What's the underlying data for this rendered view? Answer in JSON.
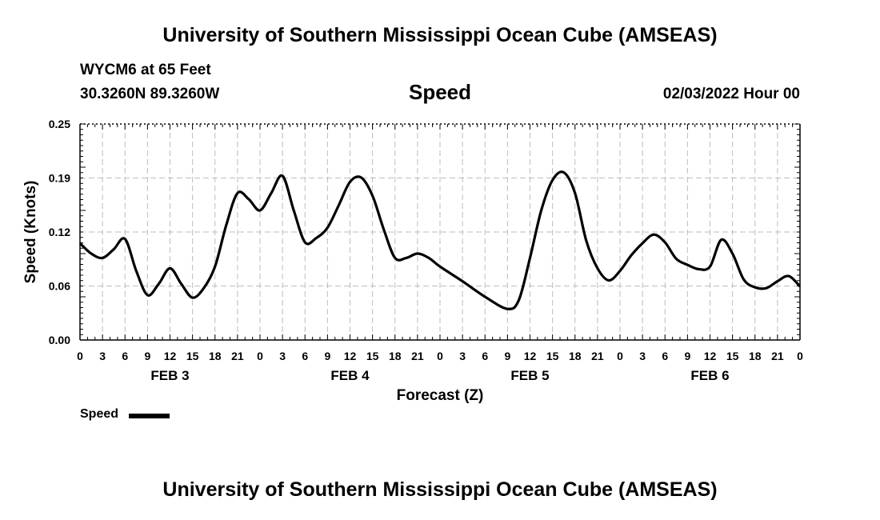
{
  "header": {
    "title": "University of Southern Mississippi Ocean Cube (AMSEAS)",
    "station": "WYCM6 at 65 Feet",
    "coords": "30.3260N  89.3260W",
    "variable": "Speed",
    "datetime": "02/03/2022 Hour 00"
  },
  "footer": {
    "title": "University of Southern Mississippi Ocean Cube (AMSEAS)"
  },
  "legend": {
    "label": "Speed"
  },
  "chart_data": {
    "type": "line",
    "title": "Speed",
    "xlabel": "Forecast (Z)",
    "ylabel": "Speed (Knots)",
    "ylim": [
      0,
      0.25
    ],
    "xlim": [
      0,
      96
    ],
    "grid": true,
    "legend_position": "bottom-left",
    "y_ticks": [
      "0.00",
      "0.06",
      "0.12",
      "0.19",
      "0.25"
    ],
    "y_tick_values": [
      0,
      0.0625,
      0.125,
      0.1875,
      0.25
    ],
    "x_tick_labels": [
      "0",
      "3",
      "6",
      "9",
      "12",
      "15",
      "18",
      "21",
      "0",
      "3",
      "6",
      "9",
      "12",
      "15",
      "18",
      "21",
      "0",
      "3",
      "6",
      "9",
      "12",
      "15",
      "18",
      "21",
      "0",
      "3",
      "6",
      "9",
      "12",
      "15",
      "18",
      "21",
      "0"
    ],
    "day_labels": [
      {
        "label": "FEB 3",
        "hour": 12
      },
      {
        "label": "FEB 4",
        "hour": 36
      },
      {
        "label": "FEB 5",
        "hour": 60
      },
      {
        "label": "FEB 6",
        "hour": 84
      }
    ],
    "series": [
      {
        "name": "Speed",
        "x": [
          0,
          1.5,
          3,
          4.5,
          6,
          7.5,
          9,
          10.5,
          12,
          13.5,
          15,
          16.5,
          18,
          19.5,
          21,
          22.5,
          24,
          25.5,
          27,
          28.5,
          30,
          31.5,
          33,
          34.5,
          36,
          37.5,
          39,
          40.5,
          42,
          43.5,
          45,
          46.5,
          48,
          51,
          54,
          57,
          58.5,
          60,
          61.5,
          63,
          64.5,
          66,
          67.5,
          69,
          70.5,
          72,
          73.5,
          75,
          76.5,
          78,
          79.5,
          81,
          82.5,
          84,
          85.5,
          87,
          88.5,
          90,
          91.5,
          93,
          94.5,
          96
        ],
        "values": [
          0.112,
          0.1,
          0.095,
          0.105,
          0.117,
          0.08,
          0.052,
          0.065,
          0.083,
          0.065,
          0.049,
          0.06,
          0.085,
          0.133,
          0.17,
          0.163,
          0.15,
          0.17,
          0.19,
          0.15,
          0.113,
          0.118,
          0.13,
          0.156,
          0.183,
          0.188,
          0.167,
          0.128,
          0.095,
          0.095,
          0.1,
          0.095,
          0.085,
          0.068,
          0.05,
          0.036,
          0.046,
          0.095,
          0.15,
          0.185,
          0.194,
          0.17,
          0.115,
          0.083,
          0.069,
          0.08,
          0.098,
          0.112,
          0.122,
          0.113,
          0.094,
          0.087,
          0.082,
          0.085,
          0.116,
          0.1,
          0.07,
          0.061,
          0.06,
          0.068,
          0.074,
          0.062
        ]
      }
    ]
  }
}
